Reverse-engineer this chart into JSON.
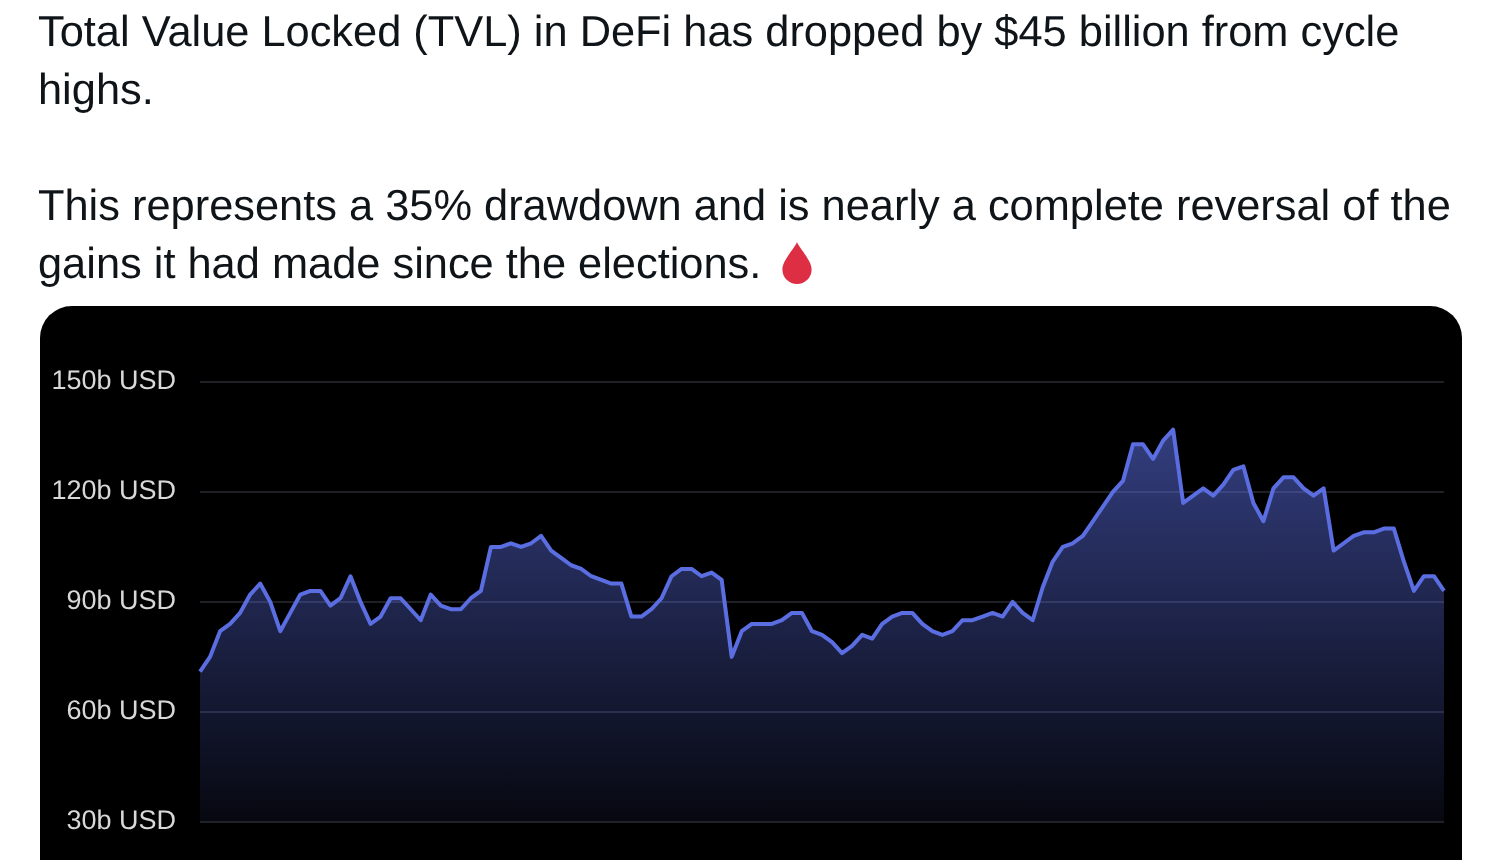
{
  "chart_data": {
    "type": "area",
    "title": "Total Value Locked (TVL) in DeFi has dropped by $45 billion from cycle highs.",
    "subtitle": "This represents a 35% drawdown and is nearly a complete reversal of the gains it had made since the elections.",
    "categories": [
      null,
      null,
      null,
      null,
      null,
      null,
      null,
      null,
      null,
      null,
      null,
      null,
      null,
      null,
      null,
      null,
      null,
      null,
      null,
      null,
      null,
      null,
      null,
      null,
      null,
      null,
      null,
      null,
      null,
      null,
      null,
      null,
      null,
      null,
      null,
      null,
      null,
      null,
      null,
      null,
      null,
      null,
      null,
      null,
      null,
      null,
      null,
      null,
      null,
      null,
      null,
      null,
      null,
      null,
      null,
      null,
      null,
      null,
      null,
      null,
      null,
      null,
      null,
      null,
      null,
      null,
      null,
      null,
      null,
      null,
      null,
      null,
      null,
      null,
      null,
      null,
      null,
      null,
      null,
      null,
      null,
      null,
      null,
      null,
      null,
      null,
      null,
      null,
      null,
      null,
      null,
      null,
      null,
      null,
      null,
      null,
      null,
      null,
      null,
      null,
      null,
      null,
      null,
      null,
      null,
      null,
      null,
      null,
      null,
      null,
      null,
      null,
      null,
      null,
      null,
      null,
      null,
      null,
      null,
      null,
      null,
      null,
      null,
      null,
      null
    ],
    "values": [
      71,
      75,
      82,
      84,
      87,
      92,
      95,
      90,
      82,
      87,
      92,
      93,
      93,
      89,
      91,
      97,
      90,
      84,
      86,
      91,
      91,
      88,
      85,
      92,
      89,
      88,
      88,
      91,
      93,
      105,
      105,
      106,
      105,
      106,
      108,
      104,
      102,
      100,
      99,
      97,
      96,
      95,
      95,
      86,
      86,
      88,
      91,
      97,
      99,
      99,
      97,
      98,
      96,
      75,
      82,
      84,
      84,
      84,
      85,
      87,
      87,
      82,
      81,
      79,
      76,
      78,
      81,
      80,
      84,
      86,
      87,
      87,
      84,
      82,
      81,
      82,
      85,
      85,
      86,
      87,
      86,
      90,
      87,
      85,
      94,
      101,
      105,
      106,
      108,
      112,
      116,
      120,
      123,
      133,
      133,
      129,
      134,
      137,
      117,
      119,
      121,
      119,
      122,
      126,
      127,
      117,
      112,
      121,
      124,
      124,
      121,
      119,
      121,
      104,
      106,
      108,
      109,
      109,
      110,
      110,
      101,
      93,
      97,
      97,
      93
    ],
    "color": "#5b6ee1",
    "ylim": [
      30,
      150
    ],
    "yticks": [
      {
        "value": 30,
        "label": "30b USD"
      },
      {
        "value": 60,
        "label": "60b USD"
      },
      {
        "value": 90,
        "label": "90b USD"
      },
      {
        "value": 120,
        "label": "120b USD"
      },
      {
        "value": 150,
        "label": "150b USD"
      }
    ],
    "grid": "y",
    "legend": false,
    "tick_labels": "y",
    "marker": "none"
  }
}
